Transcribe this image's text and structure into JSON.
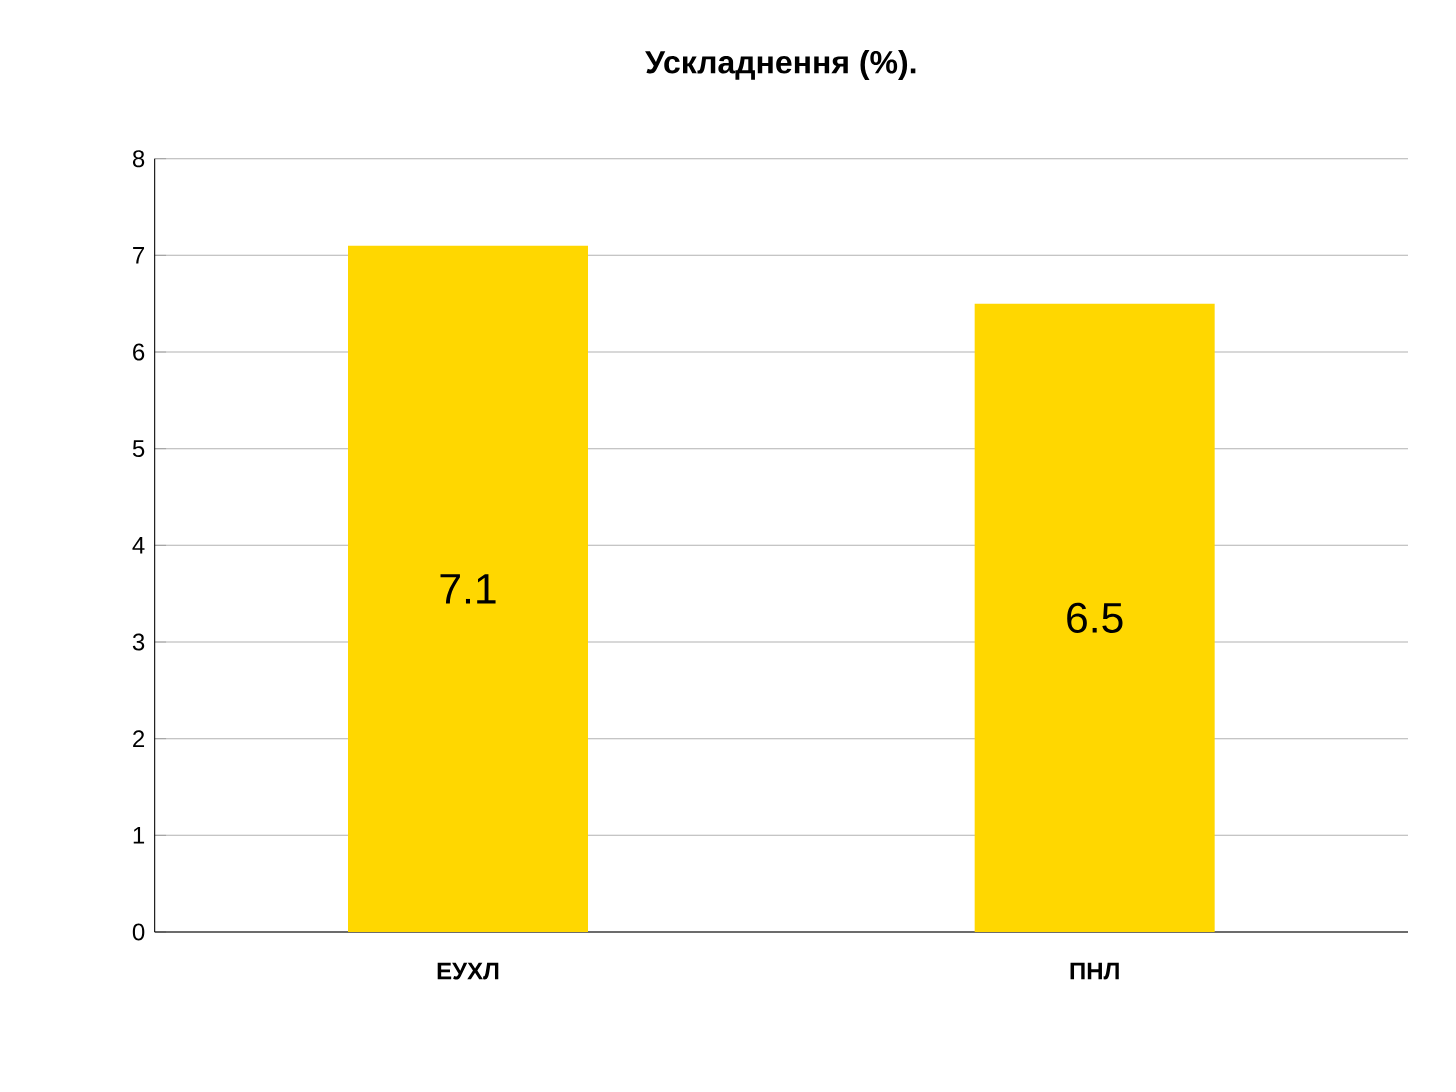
{
  "chart_data": {
    "type": "bar",
    "title": "Ускладнення (%).",
    "categories": [
      "ЕУХЛ",
      "ПНЛ"
    ],
    "values": [
      7.1,
      6.5
    ],
    "value_labels": [
      "7.1",
      "6.5"
    ],
    "color": "#ffd700",
    "ylim": [
      0,
      8
    ],
    "yticks": [
      0,
      1,
      2,
      3,
      4,
      5,
      6,
      7,
      8
    ],
    "grid": "y"
  }
}
